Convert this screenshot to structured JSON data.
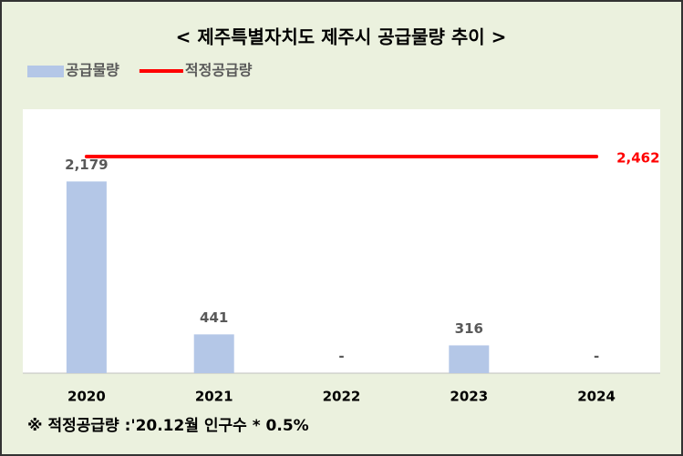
{
  "chart_data": {
    "type": "bar",
    "title": "< 제주특별자치도 제주시 공급물량 추이 >",
    "categories": [
      "2020",
      "2021",
      "2022",
      "2023",
      "2024"
    ],
    "series": [
      {
        "name": "공급물량",
        "type": "bar",
        "color": "#b4c7e7",
        "values": [
          2179,
          441,
          null,
          316,
          null
        ],
        "value_labels": [
          "2,179",
          "441",
          "-",
          "316",
          "-"
        ]
      },
      {
        "name": "적정공급량",
        "type": "line",
        "color": "#ff0000",
        "values": [
          2462,
          2462,
          2462,
          2462,
          2462
        ],
        "value_labels": [
          null,
          null,
          null,
          null,
          "2,462"
        ]
      }
    ],
    "ylim": [
      0,
      3000
    ],
    "legend": "top-left",
    "note": "※ 적정공급량 :'20.12월 인구수 * 0.5%"
  }
}
